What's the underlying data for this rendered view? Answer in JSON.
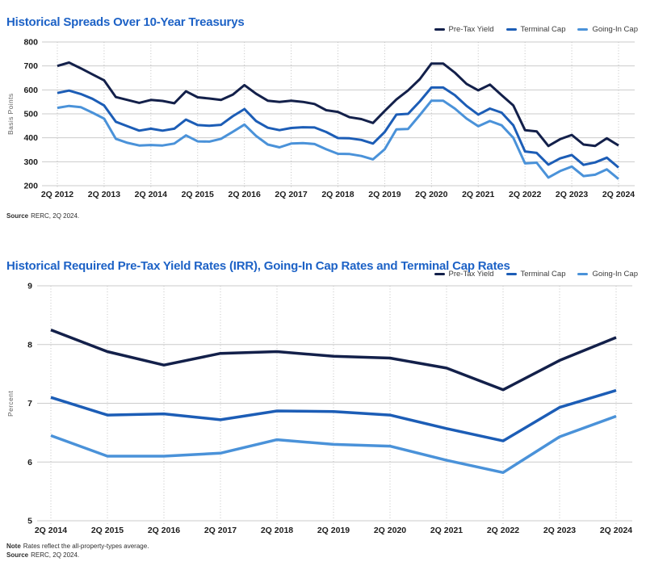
{
  "colors": {
    "title_blue": "#1d62c6",
    "pre_tax_yield": "#13204a",
    "terminal_cap": "#1c5db6",
    "going_in_cap": "#4a92d9",
    "gridline": "#cbcbcb"
  },
  "chart_data": [
    {
      "type": "line",
      "title": "Historical Spreads Over 10-Year Treasurys",
      "ylabel": "Basis Points",
      "xlabel": "",
      "ylim": [
        200,
        800
      ],
      "ytick_step": 100,
      "grid": true,
      "legend_position": "top-right",
      "x_frequency": "quarterly",
      "points_per_tick": 4,
      "x_tick_labels": [
        "2Q 2012",
        "2Q 2013",
        "2Q 2014",
        "2Q 2015",
        "2Q 2016",
        "2Q 2017",
        "2Q 2018",
        "2Q 2019",
        "2Q 2020",
        "2Q 2021",
        "2Q 2022",
        "2Q 2023",
        "2Q 2024"
      ],
      "series": [
        {
          "name": "Pre-Tax Yield",
          "color": "#13204a",
          "values": [
            700,
            714,
            690,
            665,
            640,
            570,
            558,
            546,
            558,
            554,
            544,
            594,
            569,
            564,
            558,
            580,
            620,
            584,
            555,
            550,
            555,
            550,
            541,
            515,
            508,
            486,
            478,
            462,
            512,
            560,
            598,
            645,
            710,
            710,
            672,
            625,
            598,
            622,
            578,
            535,
            432,
            427,
            366,
            394,
            412,
            372,
            366,
            398,
            368
          ]
        },
        {
          "name": "Terminal Cap",
          "color": "#1c5db6",
          "values": [
            587,
            597,
            583,
            563,
            535,
            467,
            448,
            430,
            438,
            430,
            438,
            476,
            453,
            450,
            454,
            490,
            520,
            470,
            442,
            432,
            441,
            444,
            443,
            424,
            399,
            398,
            391,
            376,
            424,
            497,
            500,
            552,
            610,
            610,
            578,
            533,
            497,
            522,
            505,
            452,
            343,
            337,
            288,
            314,
            328,
            287,
            297,
            317,
            276
          ]
        },
        {
          "name": "Going-In Cap",
          "color": "#4a92d9",
          "values": [
            525,
            533,
            528,
            505,
            480,
            396,
            379,
            368,
            370,
            368,
            376,
            410,
            385,
            384,
            396,
            425,
            455,
            408,
            372,
            360,
            376,
            378,
            374,
            352,
            333,
            332,
            324,
            310,
            352,
            435,
            437,
            495,
            555,
            555,
            522,
            480,
            448,
            470,
            452,
            400,
            293,
            296,
            234,
            261,
            280,
            240,
            246,
            268,
            228
          ]
        }
      ],
      "source_label": "Source",
      "source_text": "RERC, 2Q 2024."
    },
    {
      "type": "line",
      "title": "Historical Required Pre-Tax Yield Rates (IRR), Going-In Cap Rates and Terminal Cap Rates",
      "ylabel": "Percent",
      "xlabel": "",
      "ylim": [
        5,
        9
      ],
      "ytick_step": 1,
      "grid": true,
      "legend_position": "top-right",
      "x_frequency": "annual",
      "points_per_tick": 1,
      "x_tick_labels": [
        "2Q 2014",
        "2Q 2015",
        "2Q 2016",
        "2Q 2017",
        "2Q 2018",
        "2Q 2019",
        "2Q 2020",
        "2Q 2021",
        "2Q 2022",
        "2Q 2023",
        "2Q 2024"
      ],
      "series": [
        {
          "name": "Pre-Tax Yield",
          "color": "#13204a",
          "values": [
            8.25,
            7.88,
            7.65,
            7.85,
            7.88,
            7.8,
            7.77,
            7.6,
            7.23,
            7.73,
            8.12
          ]
        },
        {
          "name": "Terminal Cap",
          "color": "#1c5db6",
          "values": [
            7.1,
            6.8,
            6.82,
            6.72,
            6.87,
            6.86,
            6.8,
            6.57,
            6.36,
            6.93,
            7.22
          ]
        },
        {
          "name": "Going-In Cap",
          "color": "#4a92d9",
          "values": [
            6.45,
            6.1,
            6.1,
            6.15,
            6.38,
            6.3,
            6.27,
            6.03,
            5.82,
            6.43,
            6.78
          ]
        }
      ],
      "note_label": "Note",
      "note_text": "Rates reflect the all-property-types average.",
      "source_label": "Source",
      "source_text": "RERC, 2Q 2024."
    }
  ]
}
